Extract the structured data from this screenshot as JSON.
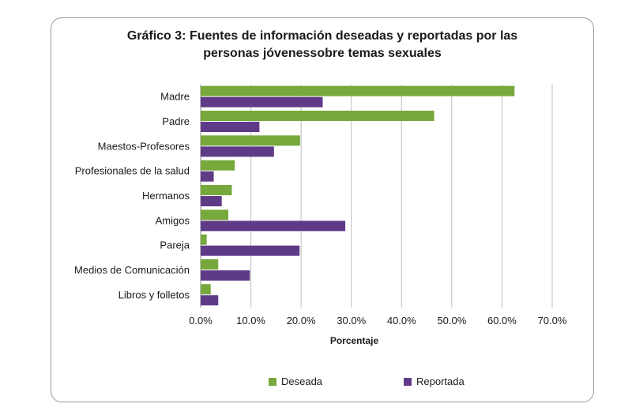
{
  "chart_data": {
    "type": "bar",
    "orientation": "horizontal",
    "title_line1": "Gráfico 3: Fuentes de información deseadas y reportadas por las",
    "title_line2": "personas jóvenessobre temas sexuales",
    "xlabel": "Porcentaje",
    "xlim": [
      0,
      70
    ],
    "x_ticks": [
      "0.0%",
      "10.0%",
      "20.0%",
      "30.0%",
      "40.0%",
      "50.0%",
      "60.0%",
      "70.0%"
    ],
    "grid": "vertical",
    "legend_position": "bottom",
    "categories": [
      "Madre",
      "Padre",
      "Maestos-Profesores",
      "Profesionales de la salud",
      "Hermanos",
      "Amigos",
      "Pareja",
      "Medios de Comunicación",
      "Libros y folletos"
    ],
    "series": [
      {
        "name": "Deseada",
        "color": "#77a83b",
        "values": [
          62.5,
          46.5,
          19.8,
          6.8,
          6.2,
          5.5,
          1.2,
          3.5,
          2.0
        ]
      },
      {
        "name": "Reportada",
        "color": "#5f3b87",
        "values": [
          24.3,
          11.7,
          14.6,
          2.6,
          4.2,
          28.8,
          19.7,
          9.8,
          3.5
        ]
      }
    ]
  }
}
